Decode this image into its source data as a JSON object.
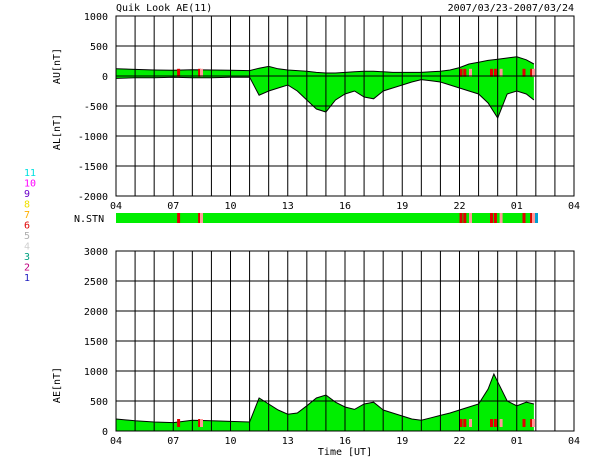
{
  "header": {
    "title": "Quik Look AE(11)",
    "date_range": "2007/03/23-2007/03/24"
  },
  "station_legend": [
    {
      "label": "11",
      "color": "#00e0e0"
    },
    {
      "label": "10",
      "color": "#ff00ff"
    },
    {
      "label": "9",
      "color": "#6a00c8"
    },
    {
      "label": "8",
      "color": "#f0e000"
    },
    {
      "label": "7",
      "color": "#ffb000"
    },
    {
      "label": "6",
      "color": "#e00000"
    },
    {
      "label": "5",
      "color": "#b0b0b0"
    },
    {
      "label": "4",
      "color": "#d0d0d0"
    },
    {
      "label": "3",
      "color": "#00a080"
    },
    {
      "label": "2",
      "color": "#c00080"
    },
    {
      "label": "1",
      "color": "#2020c0"
    }
  ],
  "colors": {
    "fill": "#00ee00",
    "grid": "#000000",
    "marker_red": "#e00000",
    "marker_pink": "#ff9999"
  },
  "chart_data": [
    {
      "type": "area",
      "title": "",
      "ylabel_top": "AU[nT]",
      "ylabel_bottom": "AL[nT]",
      "ylim": [
        -2000,
        1000
      ],
      "yticks": [
        "1000",
        "500",
        "0",
        "-500",
        "-1000",
        "-1500",
        "-2000"
      ],
      "xticks": [
        "04",
        "07",
        "10",
        "13",
        "16",
        "19",
        "22",
        "01",
        "04"
      ],
      "grid": true,
      "series": [
        {
          "values_x_hours": [
            4,
            5,
            6,
            7,
            8,
            9,
            10,
            11,
            11.5,
            12,
            12.5,
            13,
            13.5,
            14,
            14.5,
            15,
            15.5,
            16,
            16.5,
            17,
            17.5,
            18,
            18.5,
            19,
            19.5,
            20,
            20.5,
            21,
            21.5,
            22,
            22.5,
            23,
            23.5,
            24,
            24.5,
            25,
            25.5,
            25.9
          ],
          "values": [
            120,
            110,
            100,
            95,
            105,
            100,
            95,
            90,
            130,
            160,
            120,
            100,
            90,
            80,
            60,
            50,
            50,
            60,
            70,
            80,
            80,
            70,
            60,
            60,
            60,
            60,
            70,
            80,
            100,
            140,
            200,
            230,
            260,
            280,
            300,
            320,
            270,
            200
          ]
        },
        {
          "values_x_hours": [
            4,
            5,
            6,
            7,
            8,
            9,
            10,
            11,
            11.5,
            12,
            12.5,
            13,
            13.5,
            14,
            14.5,
            15,
            15.5,
            16,
            16.5,
            17,
            17.5,
            18,
            18.5,
            19,
            19.5,
            20,
            20.5,
            21,
            21.5,
            22,
            22.5,
            23,
            23.5,
            24,
            24.5,
            25,
            25.5,
            25.9
          ],
          "values": [
            -40,
            -30,
            -30,
            -20,
            -30,
            -30,
            -20,
            -20,
            -320,
            -250,
            -200,
            -150,
            -250,
            -400,
            -550,
            -600,
            -400,
            -300,
            -250,
            -350,
            -380,
            -250,
            -200,
            -150,
            -100,
            -60,
            -80,
            -100,
            -150,
            -200,
            -250,
            -300,
            -450,
            -700,
            -300,
            -250,
            -300,
            -400
          ]
        }
      ]
    },
    {
      "type": "strip",
      "label": "N.STN",
      "xticks": [
        "04",
        "07",
        "10",
        "13",
        "16",
        "19",
        "22",
        "01",
        "04"
      ],
      "markers_x_hours": [
        7.2,
        8.3,
        8.4,
        22.0,
        22.2,
        22.5,
        23.6,
        23.8,
        24.1,
        25.3,
        25.7,
        25.8
      ]
    },
    {
      "type": "area",
      "title": "",
      "ylabel": "AE[nT]",
      "xlabel": "Time [UT]",
      "ylim": [
        0,
        3000
      ],
      "yticks": [
        "3000",
        "2500",
        "2000",
        "1500",
        "1000",
        "500",
        "0"
      ],
      "xticks": [
        "04",
        "07",
        "10",
        "13",
        "16",
        "19",
        "22",
        "01",
        "04"
      ],
      "grid": true,
      "series": [
        {
          "values_x_hours": [
            4,
            5,
            6,
            7,
            8,
            9,
            10,
            11,
            11.5,
            12,
            12.5,
            13,
            13.5,
            14,
            14.5,
            15,
            15.5,
            16,
            16.5,
            17,
            17.5,
            18,
            18.5,
            19,
            19.5,
            20,
            20.5,
            21,
            21.5,
            22,
            22.5,
            23,
            23.5,
            23.8,
            24,
            24.5,
            25,
            25.5,
            25.9
          ],
          "values": [
            200,
            170,
            150,
            140,
            180,
            170,
            160,
            150,
            550,
            450,
            350,
            280,
            300,
            420,
            550,
            600,
            480,
            400,
            360,
            450,
            480,
            350,
            300,
            250,
            200,
            180,
            220,
            260,
            300,
            350,
            400,
            450,
            700,
            950,
            820,
            500,
            420,
            480,
            450
          ]
        }
      ]
    }
  ],
  "axis_labels": {
    "xlabel": "Time [UT]",
    "strip_label": "N.STN"
  }
}
